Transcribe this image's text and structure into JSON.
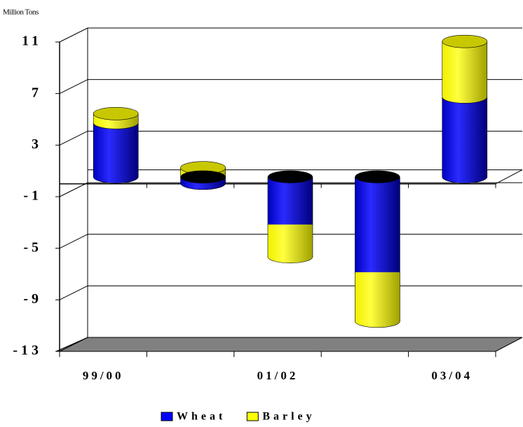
{
  "chart_data": {
    "type": "bar",
    "stacked": true,
    "y_label": "Million Tons",
    "categories": [
      "99/00",
      null,
      "01/02",
      null,
      "03/04"
    ],
    "series": [
      {
        "name": "Wheat",
        "color": "#0000ff",
        "values": [
          4.2,
          -0.5,
          -3.7,
          -7.4,
          6.2
        ]
      },
      {
        "name": "Barley",
        "color": "#ffff00",
        "values": [
          0.7,
          0.7,
          -2.5,
          -3.8,
          4.3
        ]
      }
    ],
    "ylim": [
      -13,
      11
    ],
    "yticks": [
      -13,
      -9,
      -5,
      -1,
      3,
      7,
      11
    ],
    "grid": true,
    "legend": "bottom"
  }
}
